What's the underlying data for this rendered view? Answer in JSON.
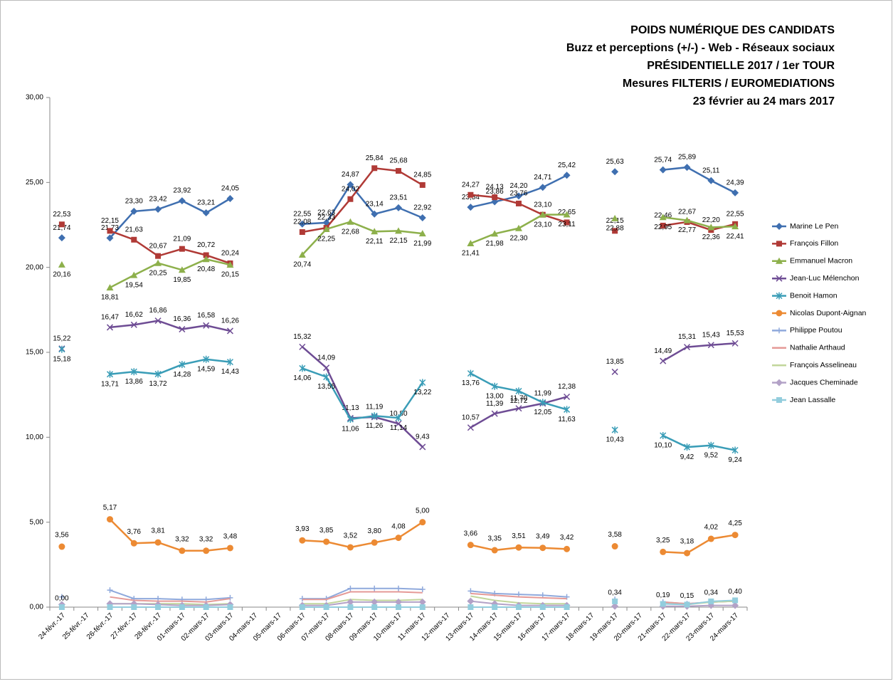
{
  "chart_data": {
    "type": "line",
    "title": [
      "POIDS NUMÉRIQUE DES CANDIDATS",
      "Buzz et perceptions (+/-) - Web - Réseaux sociaux",
      "PRÉSIDENTIELLE 2017 / 1er TOUR",
      "Mesures FILTERIS / EUROMEDIATIONS",
      "23 février au 24 mars 2017"
    ],
    "categories": [
      "24-févr.-17",
      "25-févr.-17",
      "26-févr.-17",
      "27-févr.-17",
      "28-févr.-17",
      "01-mars-17",
      "02-mars-17",
      "03-mars-17",
      "04-mars-17",
      "05-mars-17",
      "06-mars-17",
      "07-mars-17",
      "08-mars-17",
      "09-mars-17",
      "10-mars-17",
      "11-mars-17",
      "12-mars-17",
      "13-mars-17",
      "14-mars-17",
      "15-mars-17",
      "16-mars-17",
      "17-mars-17",
      "18-mars-17",
      "19-mars-17",
      "20-mars-17",
      "21-mars-17",
      "22-mars-17",
      "23-mars-17",
      "24-mars-17"
    ],
    "ylim": [
      0,
      30
    ],
    "yticks": [
      {
        "value": 0,
        "label": "0,00"
      },
      {
        "value": 5,
        "label": "5,00"
      },
      {
        "value": 10,
        "label": "10,00"
      },
      {
        "value": 15,
        "label": "15,00"
      },
      {
        "value": 20,
        "label": "20,00"
      },
      {
        "value": 25,
        "label": "25,00"
      },
      {
        "value": 30,
        "label": "30,00"
      }
    ],
    "grid": false,
    "legend": "right",
    "series": [
      {
        "name": "Marine Le Pen",
        "color": "#3f6fb0",
        "marker": "diamond",
        "values": [
          21.74,
          null,
          21.73,
          23.3,
          23.42,
          23.92,
          23.21,
          24.05,
          null,
          null,
          22.55,
          22.63,
          24.87,
          23.14,
          23.51,
          22.92,
          null,
          23.54,
          23.86,
          24.2,
          24.71,
          25.42,
          null,
          25.63,
          null,
          25.74,
          25.89,
          25.11,
          24.39
        ],
        "value_labels": [
          "21,74",
          null,
          "21,73",
          "23,30",
          "23,42",
          "23,92",
          "23,21",
          "24,05",
          null,
          null,
          "22,55",
          "22,63",
          "24,87",
          "23,14",
          "23,51",
          "22,92",
          null,
          "23,54",
          "23,86",
          "24,20",
          "24,71",
          "25,42",
          null,
          "25,63",
          null,
          "25,74",
          "25,89",
          "25,11",
          "24,39"
        ]
      },
      {
        "name": "François Fillon",
        "color": "#b03a36",
        "marker": "square",
        "values": [
          22.53,
          null,
          22.15,
          21.63,
          20.67,
          21.09,
          20.72,
          20.24,
          null,
          null,
          22.08,
          22.33,
          24.02,
          25.84,
          25.68,
          24.85,
          null,
          24.27,
          24.13,
          23.76,
          23.1,
          22.65,
          null,
          22.15,
          null,
          22.46,
          22.67,
          22.2,
          22.55
        ],
        "value_labels": [
          "22,53",
          null,
          "22,15",
          "21,63",
          "20,67",
          "21,09",
          "20,72",
          "20,24",
          null,
          null,
          "22,08",
          "22,33",
          "24,02",
          "25,84",
          "25,68",
          "24,85",
          null,
          "24,27",
          "24,13",
          "23,76",
          "23,10",
          "22,65",
          null,
          "22,15",
          null,
          "22,46",
          "22,67",
          "22,20",
          "22,55"
        ]
      },
      {
        "name": "Emmanuel Macron",
        "color": "#8db04b",
        "marker": "triangle",
        "values": [
          20.16,
          null,
          18.81,
          19.54,
          20.25,
          19.85,
          20.48,
          20.15,
          null,
          null,
          20.74,
          22.25,
          22.68,
          22.11,
          22.15,
          21.99,
          null,
          21.41,
          21.98,
          22.3,
          23.1,
          23.11,
          null,
          22.88,
          null,
          22.95,
          22.77,
          22.36,
          22.41
        ],
        "value_labels": [
          "20,16",
          null,
          "18,81",
          "19,54",
          "20,25",
          "19,85",
          "20,48",
          "20,15",
          null,
          null,
          "20,74",
          "22,25",
          "22,68",
          "22,11",
          "22,15",
          "21,99",
          null,
          "21,41",
          "21,98",
          "22,30",
          "23,10",
          "23,11",
          null,
          "22,88",
          null,
          "22,95",
          "22,77",
          "22,36",
          "22,41"
        ]
      },
      {
        "name": "Jean-Luc Mélenchon",
        "color": "#6e4c94",
        "marker": "x",
        "values": [
          15.22,
          null,
          16.47,
          16.62,
          16.86,
          16.36,
          16.58,
          16.26,
          null,
          null,
          15.32,
          14.09,
          11.13,
          11.19,
          10.8,
          9.43,
          null,
          10.57,
          11.39,
          11.7,
          11.99,
          12.38,
          null,
          13.85,
          null,
          14.49,
          15.31,
          15.43,
          15.53
        ],
        "value_labels": [
          "15,22",
          null,
          "16,47",
          "16,62",
          "16,86",
          "16,36",
          "16,58",
          "16,26",
          null,
          null,
          "15,32",
          "14,09",
          "11,13",
          "11,19",
          "10,80",
          "9,43",
          null,
          "10,57",
          "11,39",
          "11,70",
          "11,99",
          "12,38",
          null,
          "13,85",
          null,
          "14,49",
          "15,31",
          "15,43",
          "15,53"
        ]
      },
      {
        "name": "Benoit Hamon",
        "color": "#3a9db7",
        "marker": "star",
        "values": [
          15.18,
          null,
          13.71,
          13.86,
          13.72,
          14.28,
          14.59,
          14.43,
          null,
          null,
          14.06,
          13.55,
          11.06,
          11.26,
          11.14,
          13.22,
          null,
          13.76,
          13.0,
          12.72,
          12.05,
          11.63,
          null,
          10.43,
          null,
          10.1,
          9.42,
          9.52,
          9.24
        ],
        "value_labels": [
          "15,18",
          null,
          "13,71",
          "13,86",
          "13,72",
          "14,28",
          "14,59",
          "14,43",
          null,
          null,
          "14,06",
          "13,55",
          "11,06",
          "11,26",
          "11,14",
          "13,22",
          null,
          "13,76",
          "13,00",
          "12,72",
          "12,05",
          "11,63",
          null,
          "10,43",
          null,
          "10,10",
          "9,42",
          "9,52",
          "9,24"
        ]
      },
      {
        "name": "Nicolas Dupont-Aignan",
        "color": "#ec8a33",
        "marker": "circle",
        "values": [
          3.56,
          null,
          5.17,
          3.76,
          3.81,
          3.32,
          3.32,
          3.48,
          null,
          null,
          3.93,
          3.85,
          3.52,
          3.8,
          4.08,
          5.0,
          null,
          3.66,
          3.35,
          3.51,
          3.49,
          3.42,
          null,
          3.58,
          null,
          3.25,
          3.18,
          4.02,
          4.25
        ],
        "value_labels": [
          "3,56",
          null,
          "5,17",
          "3,76",
          "3,81",
          "3,32",
          "3,32",
          "3,48",
          null,
          null,
          "3,93",
          "3,85",
          "3,52",
          "3,80",
          "4,08",
          "5,00",
          null,
          "3,66",
          "3,35",
          "3,51",
          "3,49",
          "3,42",
          null,
          "3,58",
          null,
          "3,25",
          "3,18",
          "4,02",
          "4,25"
        ]
      },
      {
        "name": "Philippe Poutou",
        "color": "#8fa9dc",
        "marker": "plus",
        "values": [
          0.6,
          null,
          1.0,
          0.5,
          0.5,
          0.45,
          0.45,
          0.55,
          null,
          null,
          0.5,
          0.5,
          1.1,
          1.1,
          1.1,
          1.05,
          null,
          0.95,
          0.8,
          0.75,
          0.7,
          0.6,
          null,
          0.45,
          null,
          0.3,
          0.2,
          0.3,
          0.35
        ]
      },
      {
        "name": "Nathalie Arthaud",
        "color": "#e59a97",
        "marker": "none",
        "values": [
          0.6,
          null,
          0.6,
          0.4,
          0.35,
          0.35,
          0.3,
          0.5,
          null,
          null,
          0.45,
          0.45,
          0.9,
          0.9,
          0.9,
          0.85,
          null,
          0.8,
          0.7,
          0.6,
          0.55,
          0.5,
          null,
          0.4,
          null,
          0.3,
          0.2,
          0.3,
          0.35
        ]
      },
      {
        "name": "François Asselineau",
        "color": "#c2d69b",
        "marker": "none",
        "values": [
          0.3,
          null,
          0.2,
          0.2,
          0.2,
          0.2,
          0.15,
          0.2,
          null,
          null,
          0.2,
          0.2,
          0.45,
          0.4,
          0.4,
          0.45,
          null,
          0.65,
          0.4,
          0.25,
          0.2,
          0.2,
          null,
          0.2,
          null,
          0.2,
          0.15,
          0.3,
          0.35
        ]
      },
      {
        "name": "Jacques Cheminade",
        "color": "#b3a2c7",
        "marker": "diamond",
        "values": [
          0.15,
          null,
          0.2,
          0.2,
          0.15,
          0.1,
          0.1,
          0.15,
          null,
          null,
          0.1,
          0.1,
          0.3,
          0.3,
          0.3,
          0.3,
          null,
          0.35,
          0.2,
          0.1,
          0.1,
          0.1,
          null,
          0.05,
          null,
          0.05,
          0.05,
          0.1,
          0.1
        ]
      },
      {
        "name": "Jean Lassalle",
        "color": "#93cddd",
        "marker": "square",
        "values": [
          0,
          null,
          0,
          0,
          0,
          0,
          0,
          0,
          null,
          null,
          0,
          0,
          0,
          0,
          0,
          0,
          null,
          0,
          0,
          0,
          0,
          0,
          null,
          0.34,
          null,
          0.19,
          0.15,
          0.34,
          0.4
        ],
        "value_labels": [
          "0,00",
          null,
          null,
          null,
          null,
          null,
          null,
          null,
          null,
          null,
          null,
          null,
          null,
          null,
          null,
          null,
          null,
          null,
          null,
          null,
          null,
          null,
          null,
          "0,34",
          null,
          "0,19",
          "0,15",
          "0,34",
          "0,40"
        ]
      }
    ]
  }
}
